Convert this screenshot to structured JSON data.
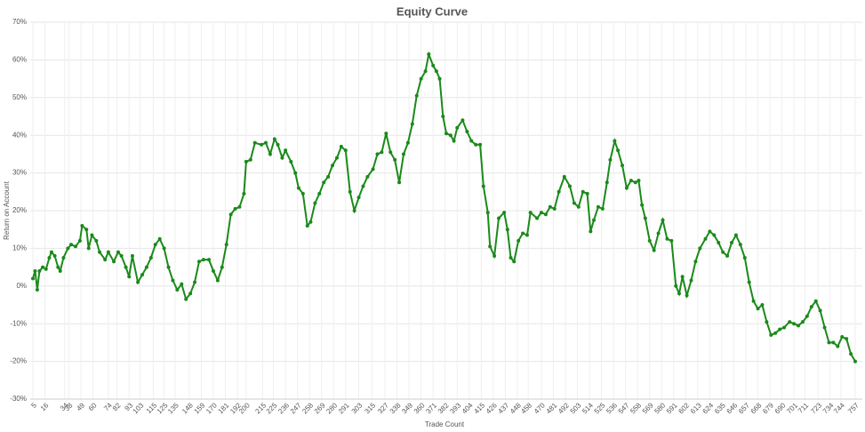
{
  "chart_data": {
    "type": "line",
    "title": "Equity Curve",
    "x_label": "Trade Count",
    "y_label": "Return on Account",
    "x": [
      5,
      7,
      9,
      11,
      14,
      17,
      20,
      22,
      25,
      28,
      30,
      33,
      37,
      40,
      44,
      48,
      50,
      54,
      56,
      59,
      63,
      66,
      71,
      74,
      79,
      83,
      86,
      90,
      93,
      96,
      101,
      105,
      109,
      113,
      117,
      121,
      125,
      129,
      133,
      137,
      141,
      145,
      149,
      153,
      157,
      161,
      166,
      170,
      174,
      178,
      182,
      186,
      190,
      194,
      198,
      200,
      204,
      208,
      214,
      218,
      222,
      226,
      229,
      233,
      236,
      241,
      245,
      248,
      252,
      256,
      259,
      263,
      267,
      271,
      275,
      279,
      283,
      287,
      291,
      295,
      299,
      303,
      307,
      311,
      316,
      320,
      324,
      328,
      332,
      336,
      340,
      344,
      348,
      352,
      356,
      360,
      364,
      367,
      371,
      374,
      377,
      380,
      383,
      387,
      390,
      393,
      398,
      402,
      406,
      410,
      414,
      417,
      421,
      423,
      427,
      431,
      436,
      439,
      442,
      445,
      449,
      453,
      457,
      460,
      466,
      470,
      474,
      478,
      482,
      486,
      491,
      496,
      500,
      504,
      508,
      512,
      515,
      518,
      522,
      526,
      530,
      533,
      537,
      540,
      544,
      548,
      552,
      556,
      559,
      562,
      565,
      569,
      573,
      577,
      581,
      585,
      589,
      593,
      596,
      599,
      603,
      607,
      611,
      615,
      620,
      624,
      628,
      632,
      636,
      640,
      644,
      648,
      652,
      656,
      660,
      664,
      668,
      672,
      676,
      680,
      684,
      688,
      692,
      697,
      701,
      705,
      709,
      713,
      717,
      721,
      725,
      729,
      733,
      737,
      741,
      745,
      749,
      753,
      757
    ],
    "series": [
      {
        "name": "Return on Account",
        "color": "#1a8a1a",
        "values": [
          2,
          4,
          -1,
          4,
          5,
          4.5,
          7.5,
          9,
          8,
          5,
          4,
          7.5,
          10,
          11,
          10.5,
          12,
          16,
          15,
          10,
          13.5,
          12,
          9,
          7,
          9,
          6.5,
          9,
          8,
          5,
          2.5,
          8,
          1,
          3,
          5,
          7.5,
          11,
          12.5,
          10,
          5,
          1.5,
          -1,
          0.5,
          -3.5,
          -2,
          1,
          6.5,
          7,
          7,
          4,
          1.5,
          5,
          11,
          19,
          20.5,
          21,
          24.5,
          33,
          33.5,
          38,
          37.5,
          38,
          35,
          39,
          37.5,
          34,
          36,
          33,
          30,
          26,
          24.5,
          16,
          17,
          22,
          24.5,
          27.5,
          29,
          32,
          34,
          37,
          36,
          25,
          20,
          23.5,
          26.5,
          29,
          31,
          35,
          35.5,
          40.5,
          35.5,
          33.5,
          27.5,
          35,
          38,
          43,
          50.5,
          55,
          57,
          61.5,
          58.5,
          57,
          55,
          45,
          40.5,
          40,
          38.5,
          42,
          44,
          41,
          38.5,
          37.5,
          37.5,
          26.5,
          19.5,
          10.5,
          8,
          18,
          19.5,
          15,
          7.5,
          6.5,
          12,
          14,
          13.5,
          19.5,
          18,
          19.5,
          19,
          21,
          20.5,
          25,
          29,
          26.5,
          22,
          21,
          25,
          24.5,
          14.5,
          17.5,
          21,
          20.5,
          27.5,
          33.5,
          38.5,
          36,
          32,
          26,
          28,
          27.5,
          28,
          21.5,
          18,
          12,
          9.5,
          14,
          17.5,
          12.5,
          12,
          0,
          -2,
          2.5,
          -2.5,
          1.5,
          6.5,
          10,
          12.5,
          14.5,
          13.5,
          11.5,
          9,
          8,
          11.5,
          13.5,
          11,
          7.5,
          1,
          -4,
          -6,
          -5,
          -9.5,
          -13,
          -12.5,
          -11.5,
          -11,
          -9.5,
          -10,
          -10.5,
          -9.5,
          -8,
          -5.5,
          -4,
          -6.5,
          -11,
          -15,
          -15,
          -16,
          -13.5,
          -14,
          -18,
          -20
        ]
      }
    ],
    "xlim": [
      5,
      757
    ],
    "xticks": [
      5,
      16,
      34,
      38,
      49,
      60,
      74,
      82,
      93,
      103,
      115,
      125,
      135,
      148,
      159,
      170,
      181,
      192,
      200,
      215,
      225,
      236,
      247,
      258,
      269,
      280,
      291,
      303,
      315,
      327,
      338,
      349,
      360,
      371,
      382,
      393,
      404,
      415,
      426,
      437,
      448,
      458,
      470,
      481,
      492,
      503,
      514,
      525,
      536,
      547,
      558,
      569,
      580,
      591,
      602,
      613,
      624,
      635,
      646,
      657,
      668,
      679,
      690,
      701,
      711,
      723,
      734,
      744,
      757
    ],
    "ylim": [
      -30,
      70
    ],
    "yticks": [
      {
        "value": -30,
        "label": "-30%"
      },
      {
        "value": -20,
        "label": "-20%"
      },
      {
        "value": -10,
        "label": "-10%"
      },
      {
        "value": 0,
        "label": "0%"
      },
      {
        "value": 10,
        "label": "10%"
      },
      {
        "value": 20,
        "label": "20%"
      },
      {
        "value": 30,
        "label": "30%"
      },
      {
        "value": 40,
        "label": "40%"
      },
      {
        "value": 50,
        "label": "50%"
      },
      {
        "value": 60,
        "label": "60%"
      },
      {
        "value": 70,
        "label": "70%"
      }
    ],
    "grid": true
  }
}
